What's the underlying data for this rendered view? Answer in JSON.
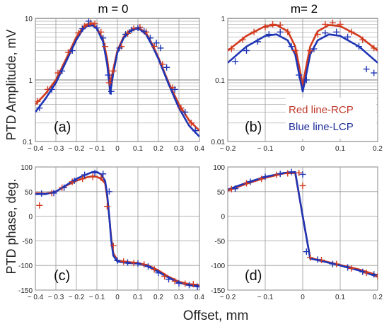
{
  "figure": {
    "ylabel_top": "PTD Amplitude, mV",
    "ylabel_bottom": "PTD phase, deg.",
    "xlabel": "Offset, mm",
    "colors": {
      "rcp": "#d23a1e",
      "lcp": "#1f35b5"
    }
  },
  "chart_data": [
    {
      "type": "line",
      "title": "m = 0",
      "label": "(a)",
      "log_y": true,
      "xlim": [
        -0.4,
        0.4
      ],
      "ylim": [
        0.1,
        10
      ],
      "xticks": [
        "-0.4",
        "-0.3",
        "-0.2",
        "-0.1",
        "0",
        "0.1",
        "0.2",
        "0.3",
        "0.4"
      ],
      "yticks": [
        "0.1",
        "1",
        "10"
      ],
      "series": [
        {
          "key": "rcp_fit",
          "color": "#d23a1e",
          "x": [
            -0.4,
            -0.35,
            -0.3,
            -0.25,
            -0.2,
            -0.17,
            -0.15,
            -0.12,
            -0.1,
            -0.07,
            -0.05,
            -0.04,
            -0.035,
            -0.02,
            0,
            0.03,
            0.06,
            0.09,
            0.11,
            0.14,
            0.17,
            0.2,
            0.25,
            0.3,
            0.35,
            0.4
          ],
          "y": [
            0.4,
            0.6,
            1.0,
            2.2,
            5.0,
            7.0,
            8.0,
            8.0,
            7.0,
            4.5,
            2.2,
            1.2,
            0.85,
            1.5,
            3.0,
            5.0,
            6.3,
            7.0,
            6.8,
            5.8,
            3.8,
            2.3,
            0.9,
            0.4,
            0.22,
            0.15
          ]
        },
        {
          "key": "lcp_fit",
          "color": "#1f35b5",
          "x": [
            -0.4,
            -0.35,
            -0.3,
            -0.25,
            -0.2,
            -0.17,
            -0.15,
            -0.12,
            -0.1,
            -0.07,
            -0.05,
            -0.04,
            -0.035,
            -0.02,
            0,
            0.03,
            0.06,
            0.09,
            0.11,
            0.14,
            0.17,
            0.2,
            0.25,
            0.3,
            0.35,
            0.4
          ],
          "y": [
            0.3,
            0.5,
            0.9,
            2.0,
            4.5,
            6.5,
            7.5,
            7.7,
            6.8,
            4.2,
            1.8,
            0.9,
            0.6,
            1.3,
            2.8,
            4.8,
            6.1,
            6.8,
            6.6,
            5.5,
            3.6,
            2.2,
            0.85,
            0.35,
            0.18,
            0.12
          ]
        },
        {
          "key": "rcp_pts",
          "color": "#d23a1e",
          "marker": "+",
          "x": [
            -0.39,
            -0.34,
            -0.29,
            -0.24,
            -0.19,
            -0.16,
            -0.13,
            -0.11,
            -0.08,
            -0.06,
            -0.04,
            -0.02,
            0.02,
            0.05,
            0.08,
            0.11,
            0.14,
            0.18,
            0.22,
            0.27,
            0.31,
            0.36
          ],
          "y": [
            0.45,
            0.7,
            1.3,
            2.8,
            5.8,
            7.5,
            8.5,
            8.2,
            6.0,
            3.5,
            0.9,
            1.4,
            3.5,
            5.7,
            6.9,
            7.2,
            6.0,
            3.5,
            1.8,
            0.75,
            0.35,
            0.2
          ]
        },
        {
          "key": "lcp_pts",
          "color": "#1f35b5",
          "marker": "+",
          "x": [
            -0.38,
            -0.32,
            -0.27,
            -0.22,
            -0.17,
            -0.14,
            -0.1,
            -0.07,
            -0.045,
            -0.03,
            0.01,
            0.04,
            0.07,
            0.1,
            0.13,
            0.16,
            0.19,
            0.21,
            0.24,
            0.28,
            0.33,
            0.38
          ],
          "y": [
            0.35,
            0.7,
            1.4,
            3.0,
            6.8,
            9.0,
            7.0,
            4.8,
            1.2,
            0.65,
            3.3,
            5.5,
            6.5,
            7.0,
            6.2,
            4.8,
            4.0,
            3.3,
            1.6,
            0.7,
            0.3,
            0.15
          ]
        }
      ]
    },
    {
      "type": "line",
      "title": "m= 2",
      "label": "(b)",
      "log_y": true,
      "xlim": [
        -0.2,
        0.2
      ],
      "ylim": [
        0.01,
        1
      ],
      "xticks": [
        "-0.2",
        "-0.1",
        "0",
        "0.1",
        "0.2"
      ],
      "yticks": [
        "0.01",
        "0.1",
        "1"
      ],
      "legend": [
        "Red line-RCP",
        "Blue line-LCP"
      ],
      "series": [
        {
          "key": "rcp_fit",
          "color": "#d23a1e",
          "x": [
            -0.2,
            -0.15,
            -0.1,
            -0.07,
            -0.04,
            -0.02,
            -0.008,
            0,
            0.008,
            0.02,
            0.04,
            0.07,
            0.1,
            0.15,
            0.2
          ],
          "y": [
            0.3,
            0.52,
            0.75,
            0.78,
            0.62,
            0.35,
            0.15,
            0.08,
            0.15,
            0.35,
            0.62,
            0.78,
            0.75,
            0.52,
            0.3
          ]
        },
        {
          "key": "lcp_fit",
          "color": "#1f35b5",
          "x": [
            -0.2,
            -0.15,
            -0.1,
            -0.07,
            -0.04,
            -0.02,
            -0.008,
            0,
            0.008,
            0.02,
            0.04,
            0.07,
            0.1,
            0.15,
            0.2
          ],
          "y": [
            0.19,
            0.35,
            0.52,
            0.55,
            0.44,
            0.26,
            0.11,
            0.065,
            0.11,
            0.26,
            0.44,
            0.55,
            0.52,
            0.35,
            0.19
          ]
        },
        {
          "key": "rcp_pts",
          "color": "#d23a1e",
          "marker": "+",
          "x": [
            -0.19,
            -0.16,
            -0.13,
            -0.1,
            -0.08,
            -0.06,
            -0.04,
            -0.02,
            0.02,
            0.04,
            0.06,
            0.08,
            0.1,
            0.13,
            0.16,
            0.19
          ],
          "y": [
            0.32,
            0.45,
            0.6,
            0.72,
            0.8,
            0.78,
            0.6,
            0.3,
            0.3,
            0.55,
            0.8,
            0.85,
            0.8,
            0.6,
            0.45,
            0.33
          ]
        },
        {
          "key": "lcp_pts",
          "color": "#1f35b5",
          "marker": "+",
          "x": [
            -0.18,
            -0.15,
            -0.12,
            -0.09,
            -0.06,
            -0.03,
            -0.01,
            0.01,
            0.03,
            0.06,
            0.09,
            0.12,
            0.15,
            0.17,
            0.19
          ],
          "y": [
            0.2,
            0.3,
            0.42,
            0.55,
            0.6,
            0.35,
            0.12,
            0.1,
            0.32,
            0.58,
            0.6,
            0.5,
            0.35,
            0.15,
            0.13
          ]
        }
      ]
    },
    {
      "type": "line",
      "label": "(c)",
      "xlim": [
        -0.4,
        0.4
      ],
      "ylim": [
        -150,
        100
      ],
      "xticks": [
        "-0.4",
        "-0.3",
        "-0.2",
        "-0.1",
        "0",
        "0.1",
        "0.2",
        "0.3",
        "0.4"
      ],
      "yticks": [
        "-150",
        "-100",
        "-50",
        "0",
        "50",
        "100"
      ],
      "series": [
        {
          "key": "rcp_fit",
          "color": "#d23a1e",
          "x": [
            -0.4,
            -0.35,
            -0.3,
            -0.25,
            -0.2,
            -0.15,
            -0.12,
            -0.1,
            -0.08,
            -0.06,
            -0.05,
            -0.04,
            -0.03,
            -0.02,
            0,
            0.05,
            0.1,
            0.15,
            0.2,
            0.25,
            0.3,
            0.35,
            0.4
          ],
          "y": [
            47,
            46,
            50,
            62,
            72,
            79,
            81,
            80,
            76,
            67,
            40,
            0,
            -45,
            -75,
            -90,
            -93,
            -95,
            -100,
            -110,
            -123,
            -133,
            -138,
            -140
          ]
        },
        {
          "key": "lcp_fit",
          "color": "#1f35b5",
          "x": [
            -0.4,
            -0.35,
            -0.3,
            -0.25,
            -0.2,
            -0.15,
            -0.12,
            -0.1,
            -0.08,
            -0.06,
            -0.05,
            -0.04,
            -0.03,
            -0.02,
            0,
            0.05,
            0.1,
            0.15,
            0.2,
            0.25,
            0.3,
            0.35,
            0.4
          ],
          "y": [
            45,
            45,
            50,
            63,
            76,
            85,
            90,
            90,
            85,
            72,
            45,
            0,
            -50,
            -80,
            -92,
            -95,
            -96,
            -102,
            -113,
            -125,
            -135,
            -140,
            -143
          ]
        },
        {
          "key": "rcp_pts",
          "color": "#d23a1e",
          "marker": "+",
          "x": [
            -0.38,
            -0.32,
            -0.27,
            -0.22,
            -0.17,
            -0.12,
            -0.08,
            -0.05,
            -0.02,
            0.03,
            0.08,
            0.13,
            0.18,
            0.23,
            0.28,
            0.33,
            0.37
          ],
          "y": [
            22,
            47,
            58,
            70,
            76,
            80,
            78,
            20,
            -60,
            -92,
            -95,
            -98,
            -108,
            -122,
            -132,
            -137,
            -138
          ]
        },
        {
          "key": "lcp_pts",
          "color": "#1f35b5",
          "marker": "+",
          "x": [
            -0.37,
            -0.31,
            -0.26,
            -0.21,
            -0.16,
            -0.11,
            -0.07,
            -0.04,
            0.0,
            0.05,
            0.1,
            0.15,
            0.2,
            0.25,
            0.3,
            0.35,
            0.39
          ],
          "y": [
            46,
            47,
            58,
            72,
            84,
            88,
            86,
            50,
            -90,
            -94,
            -96,
            -102,
            -115,
            -128,
            -136,
            -140,
            -143
          ]
        }
      ]
    },
    {
      "type": "line",
      "label": "(d)",
      "xlim": [
        -0.2,
        0.2
      ],
      "ylim": [
        -150,
        100
      ],
      "xticks": [
        "-0.2",
        "-0.1",
        "0",
        "0.1",
        "0.2"
      ],
      "yticks": [
        "-150",
        "-100",
        "-50",
        "0",
        "50",
        "100"
      ],
      "series": [
        {
          "key": "rcp_fit",
          "color": "#d23a1e",
          "x": [
            -0.2,
            -0.15,
            -0.1,
            -0.05,
            -0.02,
            0,
            0.02,
            0.05,
            0.1,
            0.15,
            0.2
          ],
          "y": [
            52,
            66,
            78,
            87,
            88,
            0,
            -85,
            -90,
            -99,
            -108,
            -120
          ]
        },
        {
          "key": "lcp_fit",
          "color": "#1f35b5",
          "x": [
            -0.2,
            -0.15,
            -0.1,
            -0.05,
            -0.02,
            0,
            0.02,
            0.05,
            0.1,
            0.15,
            0.2
          ],
          "y": [
            54,
            68,
            80,
            88,
            90,
            0,
            -86,
            -91,
            -100,
            -110,
            -123
          ]
        },
        {
          "key": "rcp_pts",
          "color": "#d23a1e",
          "marker": "+",
          "x": [
            -0.19,
            -0.15,
            -0.11,
            -0.07,
            -0.04,
            -0.01,
            0.0,
            0.02,
            0.05,
            0.09,
            0.13,
            0.17,
            0.2
          ],
          "y": [
            55,
            67,
            76,
            84,
            87,
            88,
            62,
            -84,
            -89,
            -97,
            -106,
            -115,
            -122
          ]
        },
        {
          "key": "lcp_pts",
          "color": "#1f35b5",
          "marker": "+",
          "x": [
            -0.18,
            -0.14,
            -0.1,
            -0.06,
            -0.03,
            0.0,
            0.01,
            0.04,
            0.08,
            0.12,
            0.16,
            0.19
          ],
          "y": [
            56,
            70,
            80,
            86,
            90,
            85,
            -72,
            -88,
            -97,
            -104,
            -113,
            -118
          ]
        }
      ]
    }
  ]
}
